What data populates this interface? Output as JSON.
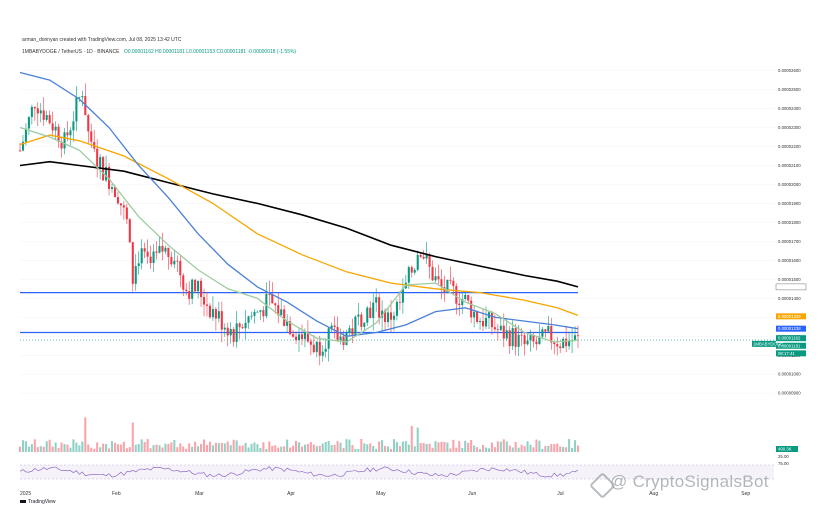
{
  "header": {
    "credit": "arman_dorinyan created with TradingView.com, Jul 08, 2025 13:42 UTC",
    "symbol_line": "1MBABYDOGE / TetherUS · 1D · BINANCE",
    "ohlc": "O0.00001162 H0.00001181 L0.00001153 C0.00001181 -0.00000018 (-1.55%)"
  },
  "watermark": {
    "text": "@ CryptoSignalsBot",
    "icon": "watermark-logo-icon"
  },
  "branding": {
    "text": "TradingView",
    "icon": "tradingview-logo-icon"
  },
  "chart_data": {
    "type": "candlestick",
    "price_axis": {
      "ticks": [
        "0.00002600",
        "0.00002500",
        "0.00002400",
        "0.00002300",
        "0.00002200",
        "0.00002100",
        "0.00002000",
        "0.00001900",
        "0.00001800",
        "0.00001700",
        "0.00001600",
        "0.00001500",
        "0.00001400",
        "0.00001300",
        "0.00001200",
        "0.00001100",
        "0.00001000",
        "0.00000900"
      ],
      "range": [
        8.8e-06,
        2.64e-05
      ]
    },
    "time_axis": {
      "labels": [
        {
          "text": "2025",
          "day": 0
        },
        {
          "text": "Feb",
          "day": 31
        },
        {
          "text": "Mar",
          "day": 59
        },
        {
          "text": "Apr",
          "day": 90
        },
        {
          "text": "May",
          "day": 120
        },
        {
          "text": "Jun",
          "day": 151
        },
        {
          "text": "Jul",
          "day": 181
        },
        {
          "text": "Aug",
          "day": 212
        },
        {
          "text": "Sep",
          "day": 243
        }
      ],
      "last_day": 188
    },
    "price_tags": [
      {
        "value": "0.00001460",
        "price": 1.46e-05,
        "bg": "#ffffff",
        "fg": "#131722"
      },
      {
        "value": "0.00001329",
        "price": 1.305e-05,
        "bg": "#f7a600",
        "fg": "#131722"
      },
      {
        "value": "0.00001238",
        "price": 1.24e-05,
        "bg": "#2962ff",
        "fg": "#ffffff"
      },
      {
        "value": "0.00001162",
        "price": 1.19e-05,
        "bg": "#089981",
        "fg": "#ffffff"
      },
      {
        "value": "0.00001181",
        "price": 1.15e-05,
        "bg": "#089981",
        "fg": "#ffffff"
      },
      {
        "value": "08:17:41",
        "price": 1.11e-05,
        "bg": "#089981",
        "fg": "#ffffff"
      }
    ],
    "symbol_tag": {
      "text": "1MBABYDOGE",
      "price": 1.16e-05
    },
    "support_resistance": [
      1.43e-05,
      1.22e-05
    ],
    "moving_averages": [
      {
        "name": "MA 200",
        "color": "#000000",
        "points": [
          [
            0,
            2.1e-05
          ],
          [
            10,
            2.12e-05
          ],
          [
            20,
            2.1e-05
          ],
          [
            35,
            2.07e-05
          ],
          [
            50,
            2.01e-05
          ],
          [
            65,
            1.95e-05
          ],
          [
            80,
            1.9e-05
          ],
          [
            95,
            1.84e-05
          ],
          [
            110,
            1.77e-05
          ],
          [
            125,
            1.68e-05
          ],
          [
            140,
            1.62e-05
          ],
          [
            155,
            1.57e-05
          ],
          [
            170,
            1.52e-05
          ],
          [
            181,
            1.49e-05
          ],
          [
            188,
            1.46e-05
          ]
        ]
      },
      {
        "name": "MA 100",
        "color": "#f7a600",
        "points": [
          [
            0,
            2.21e-05
          ],
          [
            10,
            2.26e-05
          ],
          [
            20,
            2.23e-05
          ],
          [
            35,
            2.15e-05
          ],
          [
            50,
            2.03e-05
          ],
          [
            65,
            1.9e-05
          ],
          [
            80,
            1.74e-05
          ],
          [
            95,
            1.63e-05
          ],
          [
            110,
            1.54e-05
          ],
          [
            125,
            1.48e-05
          ],
          [
            140,
            1.45e-05
          ],
          [
            155,
            1.43e-05
          ],
          [
            170,
            1.39e-05
          ],
          [
            181,
            1.35e-05
          ],
          [
            188,
            1.31e-05
          ]
        ]
      },
      {
        "name": "MA 50",
        "color": "#4a80d8",
        "points": [
          [
            0,
            2.59e-05
          ],
          [
            10,
            2.55e-05
          ],
          [
            20,
            2.45e-05
          ],
          [
            30,
            2.3e-05
          ],
          [
            40,
            2.1e-05
          ],
          [
            50,
            1.93e-05
          ],
          [
            60,
            1.74e-05
          ],
          [
            70,
            1.58e-05
          ],
          [
            80,
            1.46e-05
          ],
          [
            90,
            1.38e-05
          ],
          [
            100,
            1.28e-05
          ],
          [
            110,
            1.2e-05
          ],
          [
            120,
            1.22e-05
          ],
          [
            130,
            1.26e-05
          ],
          [
            140,
            1.33e-05
          ],
          [
            150,
            1.35e-05
          ],
          [
            160,
            1.3e-05
          ],
          [
            170,
            1.28e-05
          ],
          [
            180,
            1.26e-05
          ],
          [
            188,
            1.24e-05
          ]
        ]
      },
      {
        "name": "MA 20",
        "color": "#9ccca0",
        "points": [
          [
            0,
            2.3e-05
          ],
          [
            10,
            2.25e-05
          ],
          [
            20,
            2.18e-05
          ],
          [
            30,
            2.03e-05
          ],
          [
            40,
            1.83e-05
          ],
          [
            50,
            1.68e-05
          ],
          [
            60,
            1.55e-05
          ],
          [
            70,
            1.45e-05
          ],
          [
            80,
            1.4e-05
          ],
          [
            90,
            1.28e-05
          ],
          [
            100,
            1.19e-05
          ],
          [
            110,
            1.17e-05
          ],
          [
            120,
            1.27e-05
          ],
          [
            130,
            1.47e-05
          ],
          [
            140,
            1.48e-05
          ],
          [
            150,
            1.38e-05
          ],
          [
            160,
            1.32e-05
          ],
          [
            170,
            1.22e-05
          ],
          [
            180,
            1.17e-05
          ],
          [
            188,
            1.18e-05
          ]
        ]
      }
    ],
    "candle_path": [
      [
        0,
        2.18e-05
      ],
      [
        5,
        2.44e-05
      ],
      [
        10,
        2.34e-05
      ],
      [
        15,
        2.22e-05
      ],
      [
        18,
        2.36e-05
      ],
      [
        21,
        2.5e-05
      ],
      [
        24,
        2.18e-05
      ],
      [
        27,
        2.1e-05
      ],
      [
        30,
        2.03e-05
      ],
      [
        33,
        1.95e-05
      ],
      [
        36,
        1.8e-05
      ],
      [
        38,
        1.5e-05
      ],
      [
        40,
        1.63e-05
      ],
      [
        44,
        1.57e-05
      ],
      [
        48,
        1.65e-05
      ],
      [
        52,
        1.63e-05
      ],
      [
        56,
        1.45e-05
      ],
      [
        60,
        1.45e-05
      ],
      [
        64,
        1.35e-05
      ],
      [
        68,
        1.28e-05
      ],
      [
        72,
        1.22e-05
      ],
      [
        76,
        1.29e-05
      ],
      [
        80,
        1.33e-05
      ],
      [
        84,
        1.38e-05
      ],
      [
        88,
        1.32e-05
      ],
      [
        92,
        1.24e-05
      ],
      [
        96,
        1.19e-05
      ],
      [
        100,
        1.14e-05
      ],
      [
        104,
        1.21e-05
      ],
      [
        108,
        1.19e-05
      ],
      [
        112,
        1.24e-05
      ],
      [
        116,
        1.33e-05
      ],
      [
        120,
        1.36e-05
      ],
      [
        124,
        1.29e-05
      ],
      [
        128,
        1.37e-05
      ],
      [
        132,
        1.55e-05
      ],
      [
        135,
        1.67e-05
      ],
      [
        138,
        1.55e-05
      ],
      [
        142,
        1.45e-05
      ],
      [
        146,
        1.43e-05
      ],
      [
        150,
        1.39e-05
      ],
      [
        154,
        1.3e-05
      ],
      [
        158,
        1.27e-05
      ],
      [
        162,
        1.22e-05
      ],
      [
        166,
        1.2e-05
      ],
      [
        170,
        1.15e-05
      ],
      [
        174,
        1.16e-05
      ],
      [
        178,
        1.2e-05
      ],
      [
        182,
        1.17e-05
      ],
      [
        186,
        1.18e-05
      ],
      [
        188,
        1.18e-05
      ]
    ],
    "volume_axis": {
      "tick": "490.3K",
      "range_label": "25.00"
    },
    "rsi_axis": {
      "tick": "75.00"
    }
  }
}
